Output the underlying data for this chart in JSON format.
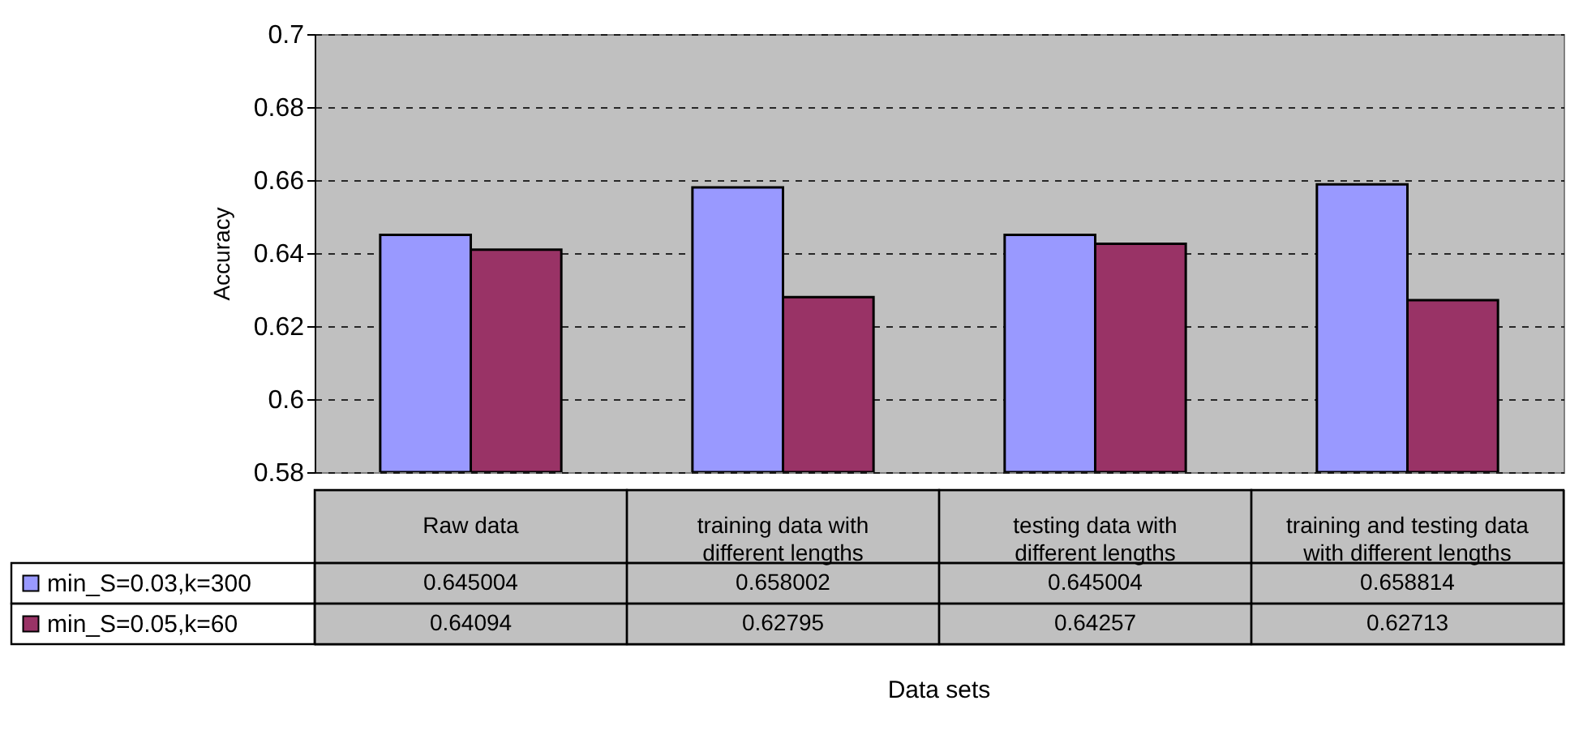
{
  "chart_data": {
    "type": "bar",
    "ylabel": "Accuracy",
    "xlabel": "Data sets",
    "categories": [
      "Raw data",
      "training data with different lengths",
      "testing data with different lengths",
      "training and testing data with different lengths"
    ],
    "series": [
      {
        "name": "min_S=0.03,k=300",
        "color": "#9999ff",
        "values": [
          0.645004,
          0.658002,
          0.645004,
          0.658814
        ]
      },
      {
        "name": "min_S=0.05,k=60",
        "color": "#993366",
        "values": [
          0.64094,
          0.62795,
          0.64257,
          0.62713
        ]
      }
    ],
    "ylim": [
      0.58,
      0.7
    ],
    "yticks": [
      0.58,
      0.6,
      0.62,
      0.64,
      0.66,
      0.68,
      0.7
    ],
    "grid": "y",
    "line_style": "dashed",
    "data_labels": true,
    "legend": "bottom left"
  }
}
